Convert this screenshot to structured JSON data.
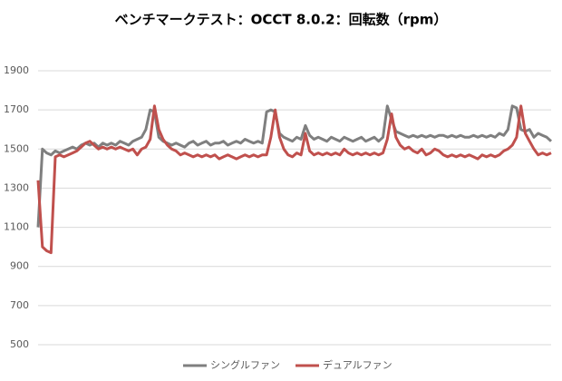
{
  "chart_data": {
    "type": "line",
    "title": "ベンチマークテスト：OCCT 8.0.2：回転数（rpm）",
    "ylim": [
      500,
      1900
    ],
    "yticks": [
      500,
      700,
      900,
      1100,
      1300,
      1500,
      1700,
      1900
    ],
    "grid": true,
    "legend": "bottom",
    "series": [
      {
        "name": "シングルファン",
        "color": "#7f7f7f",
        "values": [
          1100,
          1500,
          1480,
          1470,
          1490,
          1480,
          1490,
          1500,
          1510,
          1500,
          1520,
          1530,
          1520,
          1530,
          1510,
          1530,
          1520,
          1530,
          1520,
          1540,
          1530,
          1520,
          1540,
          1550,
          1560,
          1600,
          1700,
          1690,
          1560,
          1540,
          1530,
          1520,
          1530,
          1520,
          1510,
          1530,
          1540,
          1520,
          1530,
          1540,
          1520,
          1530,
          1530,
          1540,
          1520,
          1530,
          1540,
          1530,
          1550,
          1540,
          1530,
          1540,
          1530,
          1690,
          1700,
          1690,
          1580,
          1560,
          1550,
          1540,
          1560,
          1550,
          1620,
          1570,
          1550,
          1560,
          1550,
          1540,
          1560,
          1550,
          1540,
          1560,
          1550,
          1540,
          1550,
          1560,
          1540,
          1550,
          1560,
          1540,
          1560,
          1720,
          1650,
          1590,
          1580,
          1570,
          1560,
          1570,
          1560,
          1570,
          1560,
          1570,
          1560,
          1570,
          1570,
          1560,
          1570,
          1560,
          1570,
          1560,
          1560,
          1570,
          1560,
          1570,
          1560,
          1570,
          1560,
          1580,
          1570,
          1600,
          1720,
          1710,
          1600,
          1590,
          1600,
          1560,
          1580,
          1570,
          1560,
          1540
        ]
      },
      {
        "name": "デュアルファン",
        "color": "#c0504d",
        "values": [
          1340,
          1000,
          980,
          970,
          1460,
          1470,
          1460,
          1470,
          1480,
          1490,
          1510,
          1530,
          1540,
          1520,
          1500,
          1510,
          1500,
          1510,
          1500,
          1510,
          1500,
          1490,
          1500,
          1470,
          1500,
          1510,
          1550,
          1720,
          1600,
          1550,
          1520,
          1500,
          1490,
          1470,
          1480,
          1470,
          1460,
          1470,
          1460,
          1470,
          1460,
          1470,
          1450,
          1460,
          1470,
          1460,
          1450,
          1460,
          1470,
          1460,
          1470,
          1460,
          1470,
          1470,
          1560,
          1700,
          1560,
          1500,
          1470,
          1460,
          1480,
          1470,
          1580,
          1490,
          1470,
          1480,
          1470,
          1480,
          1470,
          1480,
          1470,
          1500,
          1480,
          1470,
          1480,
          1470,
          1480,
          1470,
          1480,
          1470,
          1480,
          1550,
          1680,
          1560,
          1520,
          1500,
          1510,
          1490,
          1480,
          1500,
          1470,
          1480,
          1500,
          1490,
          1470,
          1460,
          1470,
          1460,
          1470,
          1460,
          1470,
          1460,
          1450,
          1470,
          1460,
          1470,
          1460,
          1470,
          1490,
          1500,
          1520,
          1560,
          1720,
          1580,
          1540,
          1500,
          1470,
          1480,
          1470,
          1480
        ]
      }
    ]
  }
}
